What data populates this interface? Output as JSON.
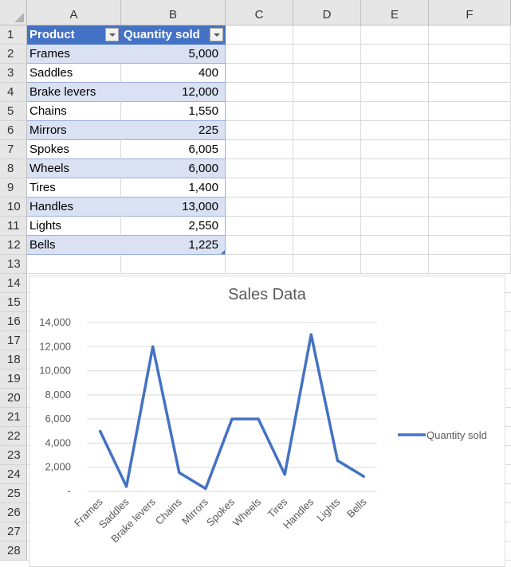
{
  "columns": [
    "A",
    "B",
    "C",
    "D",
    "E",
    "F"
  ],
  "row_numbers": [
    "1",
    "2",
    "3",
    "4",
    "5",
    "6",
    "7",
    "8",
    "9",
    "10",
    "11",
    "12",
    "13",
    "14",
    "15",
    "16",
    "17",
    "18",
    "19",
    "20",
    "21",
    "22",
    "23",
    "24",
    "25",
    "26",
    "27",
    "28"
  ],
  "table": {
    "headers": [
      "Product",
      "Quantity sold"
    ],
    "rows": [
      {
        "product": "Frames",
        "qty": "5,000"
      },
      {
        "product": "Saddles",
        "qty": "400"
      },
      {
        "product": "Brake levers",
        "qty": "12,000"
      },
      {
        "product": "Chains",
        "qty": "1,550"
      },
      {
        "product": "Mirrors",
        "qty": "225"
      },
      {
        "product": "Spokes",
        "qty": "6,005"
      },
      {
        "product": "Wheels",
        "qty": "6,000"
      },
      {
        "product": "Tires",
        "qty": "1,400"
      },
      {
        "product": "Handles",
        "qty": "13,000"
      },
      {
        "product": "Lights",
        "qty": "2,550"
      },
      {
        "product": "Bells",
        "qty": "1,225"
      }
    ],
    "header_color": "#4472c4",
    "band_color": "#d9e1f2"
  },
  "chart_data": {
    "type": "line",
    "title": "Sales Data",
    "categories": [
      "Frames",
      "Saddles",
      "Brake levers",
      "Chains",
      "Mirrors",
      "Spokes",
      "Wheels",
      "Tires",
      "Handles",
      "Lights",
      "Bells"
    ],
    "series": [
      {
        "name": "Quantity sold",
        "values": [
          5000,
          400,
          12000,
          1550,
          225,
          6005,
          6000,
          1400,
          13000,
          2550,
          1225
        ],
        "color": "#4472c4"
      }
    ],
    "ylim": [
      0,
      14000
    ],
    "yticks": [
      0,
      2000,
      4000,
      6000,
      8000,
      10000,
      12000,
      14000
    ],
    "ytick_labels": [
      "-",
      "2,000",
      "4,000",
      "6,000",
      "8,000",
      "10,000",
      "12,000",
      "14,000"
    ],
    "grid": true,
    "legend": "right"
  }
}
